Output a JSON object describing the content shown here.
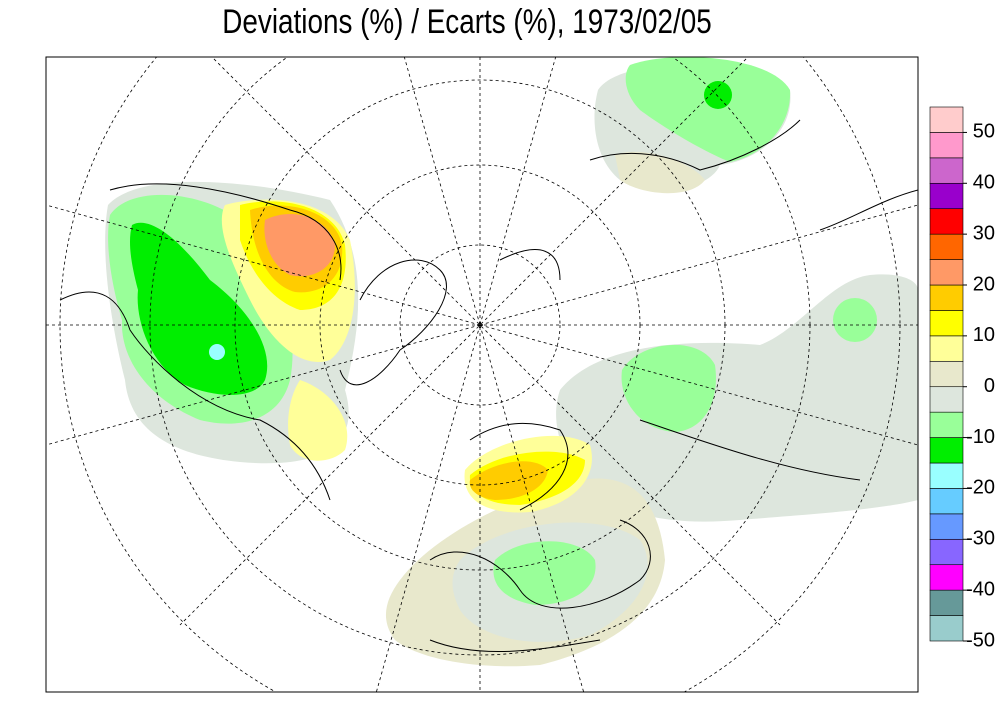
{
  "title": "Deviations (%) / Ecarts (%), 1973/02/05",
  "colorbar": {
    "bins": [
      -50,
      -45,
      -40,
      -35,
      -30,
      -25,
      -20,
      -15,
      -10,
      -5,
      0,
      5,
      10,
      15,
      20,
      25,
      30,
      35,
      40,
      45,
      50,
      55
    ],
    "colors": [
      "#99cccc",
      "#669999",
      "#ff00ff",
      "#8866ff",
      "#6699ff",
      "#66ccff",
      "#99ffff",
      "#00ee00",
      "#99ff99",
      "#dde6dd",
      "#e8e8cc",
      "#ffff99",
      "#ffff00",
      "#ffcc00",
      "#ff9966",
      "#ff6600",
      "#ff0000",
      "#9900cc",
      "#cc66cc",
      "#ff99cc",
      "#ffcccc"
    ],
    "ticks": [
      -50,
      -40,
      -30,
      -20,
      -10,
      0,
      10,
      20,
      30,
      40,
      50
    ]
  }
}
